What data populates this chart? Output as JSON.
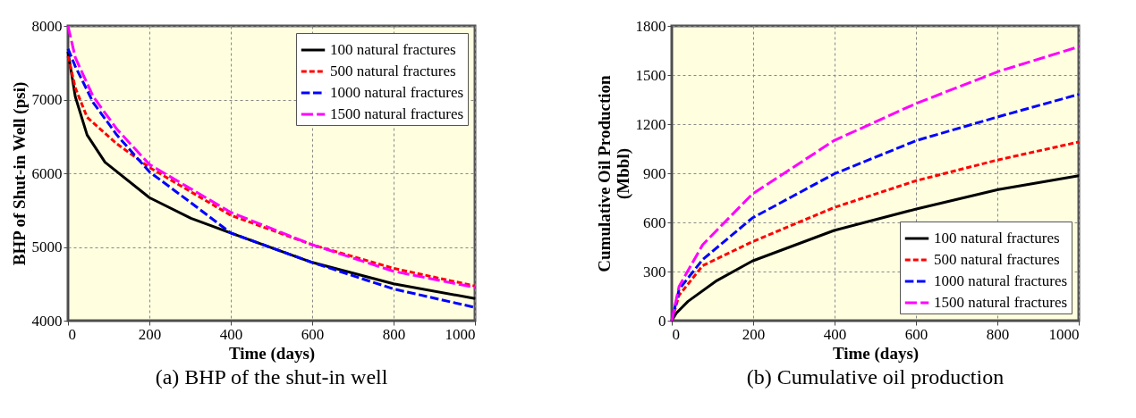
{
  "chart_data": [
    {
      "type": "line",
      "xlabel": "Time (days)",
      "ylabel": "BHP of Shut-in Well (psi)",
      "annotations": [
        "(a) BHP of the shut-in well"
      ],
      "xlim": [
        0,
        1000
      ],
      "xticks": [
        0,
        200,
        400,
        600,
        800,
        1000
      ],
      "ylim": [
        4000,
        8000
      ],
      "yticks": [
        4000,
        5000,
        6000,
        7000,
        8000
      ],
      "grid": true,
      "legend": "top right",
      "marker": "none",
      "series": [
        {
          "name": "100 natural fractures",
          "color": "#000000",
          "line_style": "solid",
          "x": [
            0,
            18,
            47,
            91,
            200,
            302,
            400,
            600,
            800,
            1000
          ],
          "values": [
            7650,
            7040,
            6520,
            6150,
            5670,
            5390,
            5190,
            4790,
            4500,
            4300
          ]
        },
        {
          "name": "500 natural fractures",
          "color": "#ff0000",
          "line_style": "dashed",
          "x": [
            0,
            18,
            47,
            120,
            200,
            400,
            600,
            800,
            1000
          ],
          "values": [
            7590,
            7160,
            6760,
            6400,
            6080,
            5430,
            5030,
            4710,
            4470
          ]
        },
        {
          "name": "1000 natural fractures",
          "color": "#0000ff",
          "line_style": "dashed",
          "x": [
            0,
            18,
            62,
            120,
            200,
            295,
            400,
            600,
            800,
            1000
          ],
          "values": [
            7690,
            7450,
            6960,
            6520,
            6020,
            5630,
            5190,
            4790,
            4430,
            4180
          ]
        },
        {
          "name": "1500 natural fractures",
          "color": "#ff00ff",
          "line_style": "dashed",
          "x": [
            0,
            18,
            62,
            120,
            200,
            400,
            600,
            800,
            1000
          ],
          "values": [
            8000,
            7570,
            7040,
            6600,
            6120,
            5470,
            5030,
            4670,
            4450
          ]
        }
      ]
    },
    {
      "type": "line",
      "xlabel": "Time (days)",
      "ylabel": "Cumulative Oil Production\n(Mbbl)",
      "annotations": [
        "(b) Cumulative  oil production"
      ],
      "xlim": [
        0,
        1000
      ],
      "xticks": [
        0,
        200,
        400,
        600,
        800,
        1000
      ],
      "ylim": [
        0,
        1800
      ],
      "yticks": [
        0,
        300,
        600,
        900,
        1200,
        1500,
        1800
      ],
      "grid": true,
      "legend": "bottom right",
      "marker": "none",
      "series": [
        {
          "name": "100 natural fractures",
          "color": "#000000",
          "line_style": "solid",
          "x": [
            0,
            11,
            40,
            111,
            198,
            399,
            601,
            802,
            1000
          ],
          "values": [
            0,
            45,
            118,
            245,
            364,
            551,
            682,
            800,
            885
          ]
        },
        {
          "name": "500 natural fractures",
          "color": "#ff0000",
          "line_style": "dashed",
          "x": [
            0,
            18,
            76,
            198,
            399,
            601,
            802,
            1000
          ],
          "values": [
            0,
            155,
            336,
            482,
            691,
            855,
            982,
            1091
          ]
        },
        {
          "name": "1000 natural fractures",
          "color": "#0000ff",
          "line_style": "dashed",
          "x": [
            0,
            18,
            76,
            198,
            399,
            601,
            802,
            1000
          ],
          "values": [
            0,
            191,
            373,
            627,
            896,
            1100,
            1245,
            1382
          ]
        },
        {
          "name": "1500 natural fractures",
          "color": "#ff00ff",
          "line_style": "dashed",
          "x": [
            0,
            18,
            76,
            198,
            399,
            601,
            802,
            1000
          ],
          "values": [
            0,
            209,
            464,
            773,
            1100,
            1327,
            1521,
            1673
          ]
        }
      ]
    }
  ]
}
